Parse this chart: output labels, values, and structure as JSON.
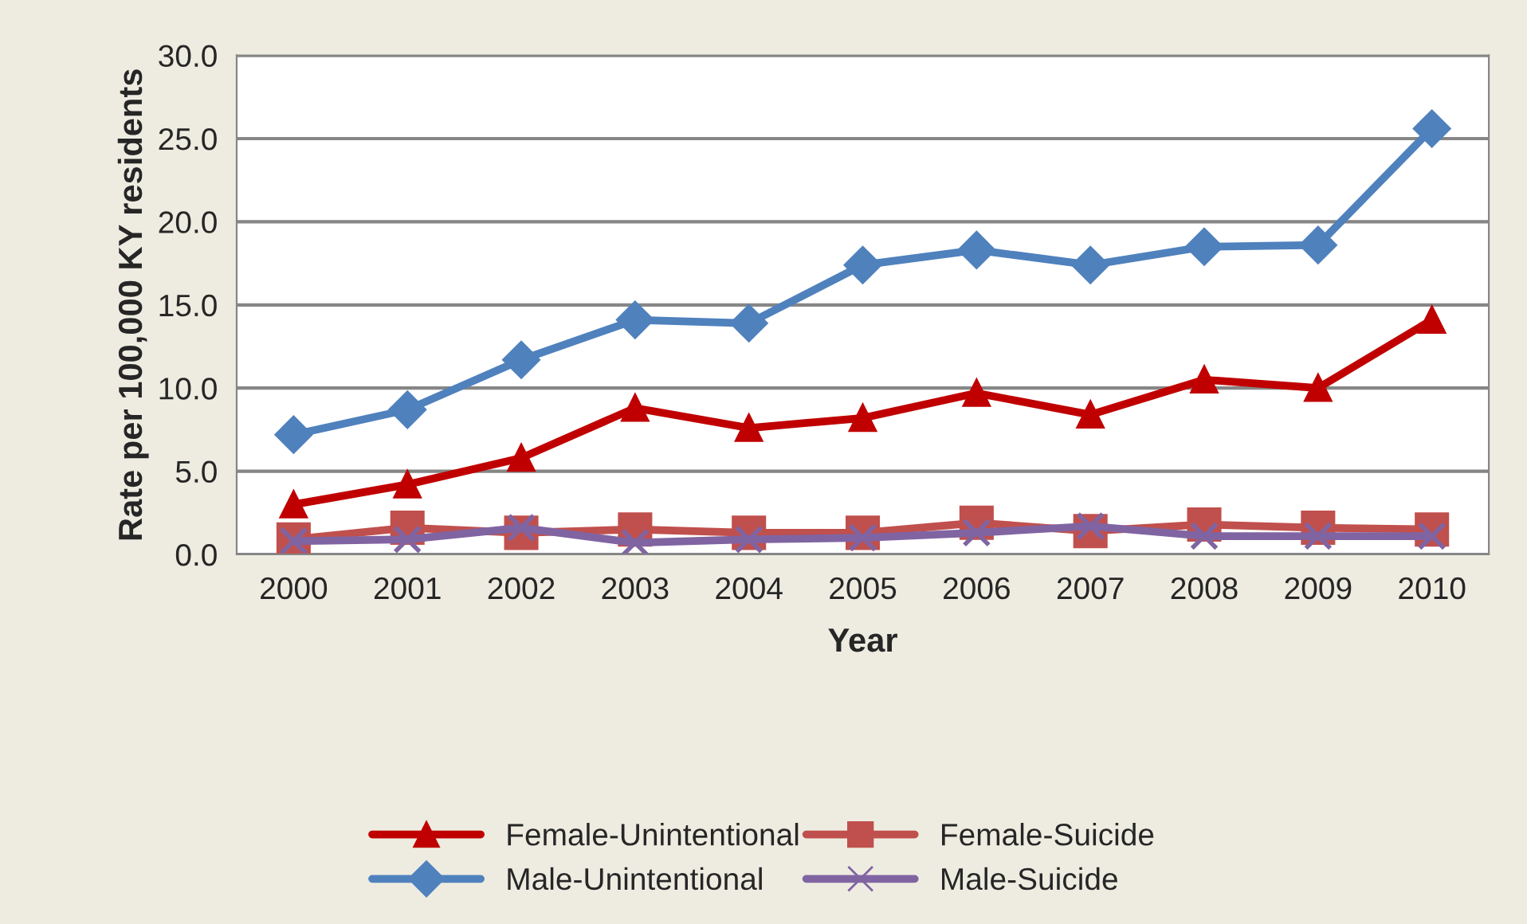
{
  "chart_data": {
    "type": "line",
    "xlabel": "Year",
    "ylabel": "Rate per 100,000 KY residents",
    "categories": [
      "2000",
      "2001",
      "2002",
      "2003",
      "2004",
      "2005",
      "2006",
      "2007",
      "2008",
      "2009",
      "2010"
    ],
    "series": [
      {
        "name": "Female-Unintentional",
        "color": "#c00000",
        "marker": "triangle",
        "values": [
          3.0,
          4.2,
          5.8,
          8.8,
          7.6,
          8.2,
          9.7,
          8.4,
          10.5,
          10.0,
          14.1
        ]
      },
      {
        "name": "Male-Unintentional",
        "color": "#4f81bd",
        "marker": "diamond",
        "values": [
          7.2,
          8.7,
          11.7,
          14.1,
          13.9,
          17.4,
          18.3,
          17.4,
          18.5,
          18.6,
          25.6
        ]
      },
      {
        "name": "Female-Suicide",
        "color": "#c0504d",
        "marker": "square",
        "values": [
          0.9,
          1.6,
          1.3,
          1.5,
          1.3,
          1.3,
          1.9,
          1.4,
          1.8,
          1.6,
          1.5
        ]
      },
      {
        "name": "Male-Suicide",
        "color": "#8064a2",
        "marker": "cross",
        "values": [
          0.8,
          0.9,
          1.6,
          0.7,
          0.9,
          1.0,
          1.3,
          1.7,
          1.1,
          1.1,
          1.1
        ]
      }
    ],
    "ylim": [
      0,
      30
    ],
    "yticks": [
      {
        "value": 0,
        "label": "0.0"
      },
      {
        "value": 5,
        "label": "5.0"
      },
      {
        "value": 10,
        "label": "10.0"
      },
      {
        "value": 15,
        "label": "15.0"
      },
      {
        "value": 20,
        "label": "20.0"
      },
      {
        "value": 25,
        "label": "25.0"
      },
      {
        "value": 30,
        "label": "30.0"
      }
    ],
    "grid": "y",
    "legend": "bottom",
    "line_style": "solid"
  }
}
